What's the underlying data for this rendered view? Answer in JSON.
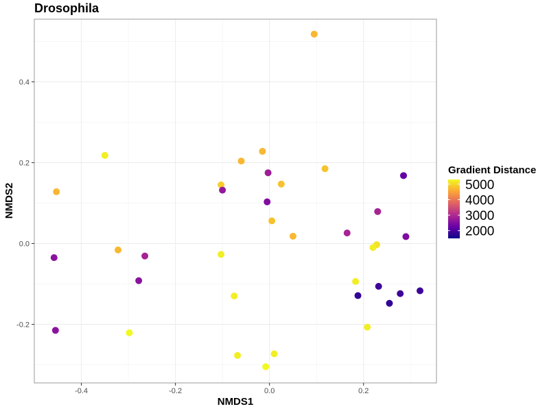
{
  "chart_data": {
    "type": "scatter",
    "title": "Drosophila",
    "xlabel": "NMDS1",
    "ylabel": "NMDS2",
    "xlim": [
      -0.5,
      0.355
    ],
    "ylim": [
      -0.345,
      0.555
    ],
    "xticks": [
      -0.4,
      -0.2,
      0.0,
      0.2
    ],
    "xtick_labels": [
      "-0.4",
      "-0.2",
      "0.0",
      "0.2"
    ],
    "yticks": [
      -0.2,
      0.0,
      0.2,
      0.4
    ],
    "ytick_labels": [
      "-0.2",
      "0.0",
      "0.2",
      "0.4"
    ],
    "grid": true,
    "color_scale": {
      "title": "Gradient Distance",
      "palette": "plasma",
      "min": 1500,
      "max": 5300,
      "breaks": [
        5000,
        4000,
        3000,
        2000
      ],
      "break_labels": [
        "5000",
        "4000",
        "3000",
        "2000"
      ],
      "colors": [
        "#0D0887",
        "#6A00A8",
        "#B12A90",
        "#E16462",
        "#FCA636",
        "#F0F921"
      ]
    },
    "legend_position": "right",
    "points": [
      {
        "x": 0.095,
        "y": 0.518,
        "value": 4700
      },
      {
        "x": -0.35,
        "y": 0.218,
        "value": 5200
      },
      {
        "x": -0.453,
        "y": 0.128,
        "value": 4700
      },
      {
        "x": -0.015,
        "y": 0.228,
        "value": 4700
      },
      {
        "x": -0.06,
        "y": 0.204,
        "value": 4700
      },
      {
        "x": 0.118,
        "y": 0.185,
        "value": 4800
      },
      {
        "x": -0.103,
        "y": 0.145,
        "value": 4900
      },
      {
        "x": -0.1,
        "y": 0.132,
        "value": 2700
      },
      {
        "x": -0.003,
        "y": 0.175,
        "value": 2800
      },
      {
        "x": 0.025,
        "y": 0.147,
        "value": 4800
      },
      {
        "x": -0.005,
        "y": 0.103,
        "value": 2500
      },
      {
        "x": 0.005,
        "y": 0.056,
        "value": 4800
      },
      {
        "x": 0.05,
        "y": 0.018,
        "value": 4700
      },
      {
        "x": 0.285,
        "y": 0.168,
        "value": 2200
      },
      {
        "x": 0.23,
        "y": 0.079,
        "value": 2900
      },
      {
        "x": 0.165,
        "y": 0.026,
        "value": 2900
      },
      {
        "x": 0.29,
        "y": 0.017,
        "value": 2500
      },
      {
        "x": 0.228,
        "y": -0.003,
        "value": 5100
      },
      {
        "x": 0.22,
        "y": -0.01,
        "value": 5200
      },
      {
        "x": -0.458,
        "y": -0.035,
        "value": 2600
      },
      {
        "x": -0.322,
        "y": -0.016,
        "value": 4700
      },
      {
        "x": -0.265,
        "y": -0.031,
        "value": 2900
      },
      {
        "x": -0.103,
        "y": -0.027,
        "value": 5200
      },
      {
        "x": -0.278,
        "y": -0.092,
        "value": 2600
      },
      {
        "x": 0.183,
        "y": -0.094,
        "value": 5200
      },
      {
        "x": -0.075,
        "y": -0.13,
        "value": 5200
      },
      {
        "x": 0.232,
        "y": -0.106,
        "value": 1900
      },
      {
        "x": 0.188,
        "y": -0.129,
        "value": 1800
      },
      {
        "x": 0.32,
        "y": -0.117,
        "value": 1900
      },
      {
        "x": 0.278,
        "y": -0.124,
        "value": 1900
      },
      {
        "x": 0.255,
        "y": -0.148,
        "value": 1800
      },
      {
        "x": 0.208,
        "y": -0.207,
        "value": 5200
      },
      {
        "x": -0.455,
        "y": -0.215,
        "value": 2600
      },
      {
        "x": -0.298,
        "y": -0.221,
        "value": 5300
      },
      {
        "x": -0.068,
        "y": -0.277,
        "value": 5200
      },
      {
        "x": 0.01,
        "y": -0.273,
        "value": 5200
      },
      {
        "x": -0.008,
        "y": -0.305,
        "value": 5300
      }
    ]
  }
}
